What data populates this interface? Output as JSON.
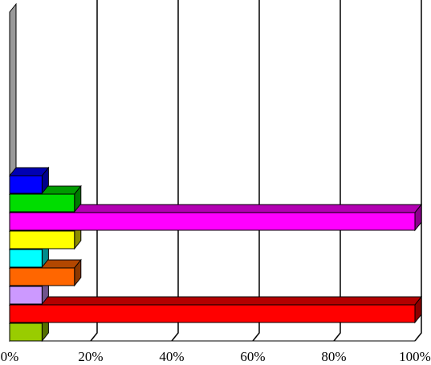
{
  "chart_data": {
    "type": "bar3d",
    "orientation": "horizontal",
    "categories": [
      null,
      null,
      null,
      null,
      null,
      null,
      null,
      null,
      null
    ],
    "values": [
      8,
      100,
      8,
      16,
      8,
      16,
      100,
      16,
      8
    ],
    "colors": [
      "#99cc00",
      "#ff0000",
      "#cc99ff",
      "#ff6600",
      "#00ffff",
      "#ffff00",
      "#ff00ff",
      "#00dd00",
      "#0000ff"
    ],
    "xlim": [
      0,
      100
    ],
    "xticks": [
      {
        "value": 0,
        "label": "0%"
      },
      {
        "value": 20,
        "label": "20%"
      },
      {
        "value": 40,
        "label": "40%"
      },
      {
        "value": 60,
        "label": "60%"
      },
      {
        "value": 80,
        "label": "80%"
      },
      {
        "value": 100,
        "label": "100%"
      }
    ],
    "grid": true
  }
}
